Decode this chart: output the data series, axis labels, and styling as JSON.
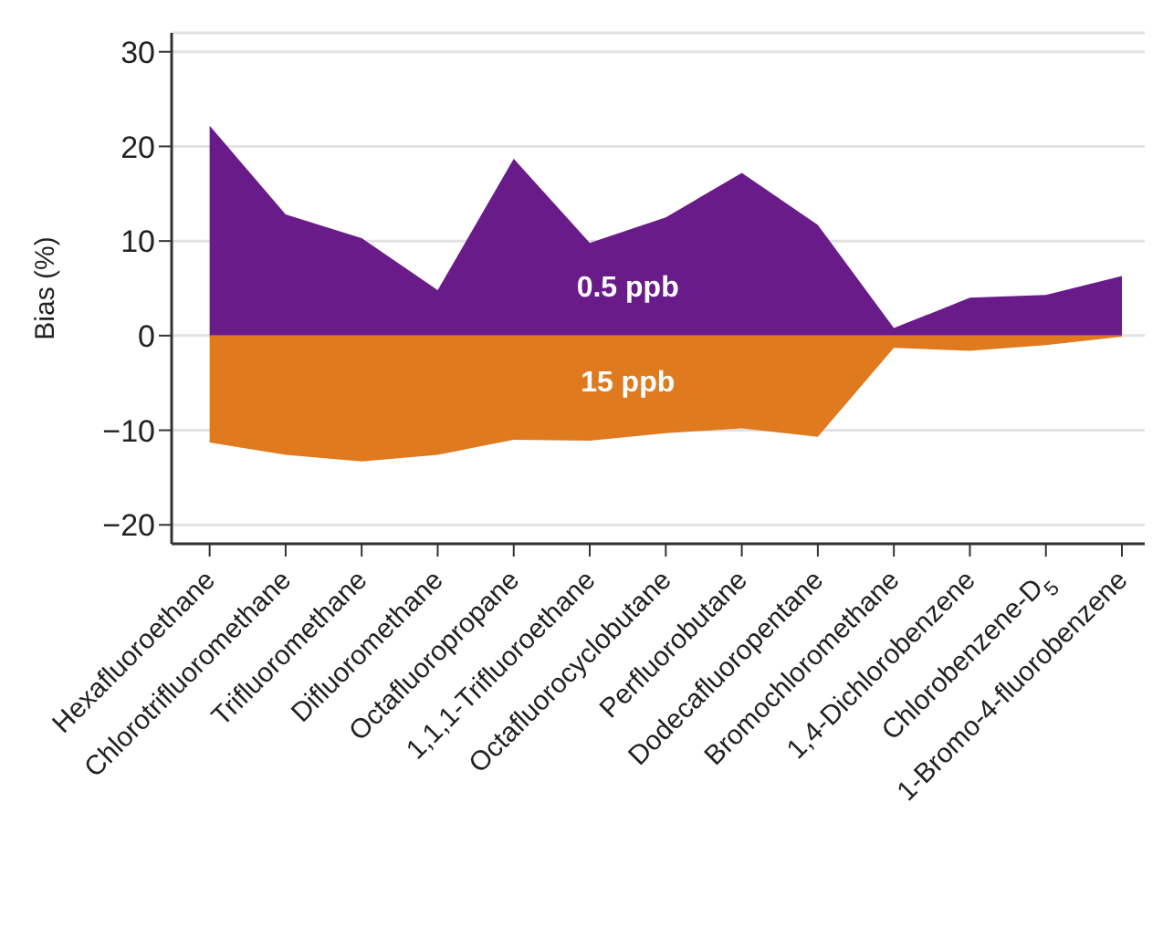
{
  "chart_data": {
    "type": "area",
    "ylabel": "Bias (%)",
    "categories": [
      "Hexafluoroethane",
      "Chlorotrifluoromethane",
      "Trifluoromethane",
      "Difluoromethane",
      "Octafluoropropane",
      "1,1,1-Trifluoroethane",
      "Octafluorocyclobutane",
      "Perfluorobutane",
      "Dodecafluoropentane",
      "Bromochloromethane",
      "1,4-Dichlorobenzene",
      "Chlorobenzene-D$_{5}$",
      "1-Bromo-4-fluorobenzene"
    ],
    "series": [
      {
        "name": "0.5 ppb",
        "color": "#6a1b8a",
        "values": [
          22.2,
          12.8,
          10.3,
          4.8,
          18.7,
          9.8,
          12.5,
          17.2,
          11.7,
          0.8,
          4.0,
          4.3,
          6.3
        ]
      },
      {
        "name": "15 ppb",
        "color": "#e07a1f",
        "values": [
          -11.3,
          -12.6,
          -13.3,
          -12.6,
          -11.0,
          -11.1,
          -10.3,
          -9.8,
          -10.7,
          -1.3,
          -1.6,
          -1.0,
          -0.1
        ]
      }
    ],
    "ylim": [
      -22,
      32
    ],
    "yticks": [
      -20,
      -10,
      0,
      10,
      20,
      30
    ],
    "grid": "y"
  }
}
